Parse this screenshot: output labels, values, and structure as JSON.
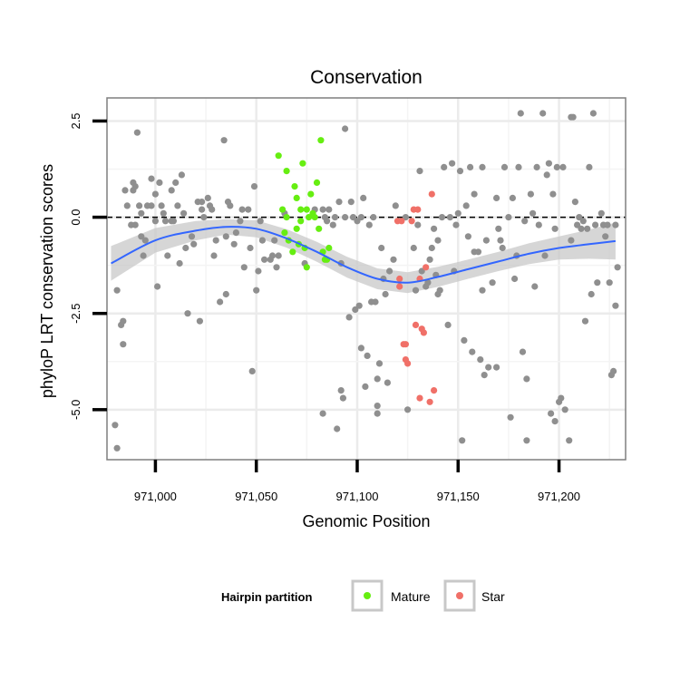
{
  "chart_data": {
    "type": "scatter",
    "title": "Conservation",
    "xlabel": "Genomic Position",
    "ylabel": "phyloP LRT conservation scores",
    "xlim": [
      970976,
      971233
    ],
    "ylim": [
      -6.3,
      3.1
    ],
    "xticks": [
      971000,
      971050,
      971100,
      971150,
      971200
    ],
    "xtick_labels": [
      "971,000",
      "971,050",
      "971,100",
      "971,150",
      "971,200"
    ],
    "yticks": [
      -5.0,
      -2.5,
      0.0,
      2.5
    ],
    "ytick_labels": [
      "-5.0",
      "-2.5",
      "0.0",
      "2.5"
    ],
    "grid": true,
    "reference_line": {
      "y": 0,
      "style": "dashed",
      "color": "#000000"
    },
    "legend": {
      "title": "Hairpin partition",
      "position": "bottom",
      "entries": [
        {
          "label": "Mature",
          "color": "#66ee11"
        },
        {
          "label": "Star",
          "color": "#f07068"
        }
      ]
    },
    "colors": {
      "other": "#8f8f8f",
      "mature": "#66ee11",
      "star": "#f07068",
      "smooth": "#3366ff",
      "band": "#c8c8c8"
    },
    "series": [
      {
        "role": "other",
        "points": [
          [
            970980,
            -5.4
          ],
          [
            970981,
            -6.0
          ],
          [
            970981,
            -1.9
          ],
          [
            970983,
            -2.8
          ],
          [
            970984,
            -3.3
          ],
          [
            970984,
            -2.7
          ],
          [
            970985,
            0.7
          ],
          [
            970986,
            0.3
          ],
          [
            970988,
            -0.2
          ],
          [
            970989,
            0.7
          ],
          [
            970989,
            0.9
          ],
          [
            970990,
            0.8
          ],
          [
            970990,
            -0.2
          ],
          [
            970991,
            2.2
          ],
          [
            970992,
            0.3
          ],
          [
            970993,
            0.1
          ],
          [
            970993,
            -0.5
          ],
          [
            970994,
            -1.0
          ],
          [
            970995,
            -0.6
          ],
          [
            970996,
            0.3
          ],
          [
            970998,
            1.0
          ],
          [
            970998,
            0.3
          ],
          [
            971000,
            -0.1
          ],
          [
            971000,
            0.6
          ],
          [
            971001,
            -1.8
          ],
          [
            971002,
            0.9
          ],
          [
            971003,
            0.3
          ],
          [
            971004,
            0.1
          ],
          [
            971005,
            -0.1
          ],
          [
            971006,
            -1.0
          ],
          [
            971008,
            0.7
          ],
          [
            971008,
            -0.1
          ],
          [
            971009,
            -0.1
          ],
          [
            971010,
            0.9
          ],
          [
            971011,
            0.3
          ],
          [
            971012,
            -1.2
          ],
          [
            971013,
            1.1
          ],
          [
            971014,
            0.1
          ],
          [
            971015,
            -0.8
          ],
          [
            971016,
            -2.5
          ],
          [
            971018,
            -0.5
          ],
          [
            971019,
            -0.7
          ],
          [
            971021,
            0.4
          ],
          [
            971022,
            -2.7
          ],
          [
            971023,
            0.4
          ],
          [
            971023,
            0.2
          ],
          [
            971024,
            0.0
          ],
          [
            971026,
            0.5
          ],
          [
            971027,
            0.3
          ],
          [
            971028,
            0.2
          ],
          [
            971029,
            -1.0
          ],
          [
            971030,
            -0.6
          ],
          [
            971032,
            -2.2
          ],
          [
            971034,
            2.0
          ],
          [
            971035,
            -0.5
          ],
          [
            971035,
            -2.0
          ],
          [
            971036,
            0.4
          ],
          [
            971037,
            0.3
          ],
          [
            971039,
            -0.7
          ],
          [
            971040,
            -0.4
          ],
          [
            971042,
            -0.1
          ],
          [
            971043,
            0.2
          ],
          [
            971044,
            -1.3
          ],
          [
            971046,
            0.2
          ],
          [
            971047,
            -0.8
          ],
          [
            971048,
            -4.0
          ],
          [
            971049,
            0.8
          ],
          [
            971050,
            -1.9
          ],
          [
            971051,
            -1.4
          ],
          [
            971052,
            -0.1
          ],
          [
            971053,
            -0.6
          ],
          [
            971054,
            -1.1
          ],
          [
            971057,
            -1.1
          ],
          [
            971058,
            -1.0
          ],
          [
            971059,
            -0.6
          ],
          [
            971060,
            -1.3
          ],
          [
            971061,
            -1.0
          ],
          [
            971064,
            0.1
          ],
          [
            971074,
            -1.2
          ],
          [
            971079,
            0.2
          ],
          [
            971083,
            0.2
          ],
          [
            971083,
            -5.1
          ],
          [
            971084,
            0.0
          ],
          [
            971085,
            -0.1
          ],
          [
            971086,
            0.2
          ],
          [
            971088,
            -0.2
          ],
          [
            971089,
            0.0
          ],
          [
            971090,
            -5.5
          ],
          [
            971091,
            0.4
          ],
          [
            971092,
            -1.2
          ],
          [
            971092,
            -4.5
          ],
          [
            971093,
            -4.7
          ],
          [
            971094,
            2.3
          ],
          [
            971094,
            0.0
          ],
          [
            971096,
            -2.6
          ],
          [
            971097,
            0.4
          ],
          [
            971098,
            0.0
          ],
          [
            971099,
            -2.4
          ],
          [
            971100,
            -0.1
          ],
          [
            971101,
            -2.3
          ],
          [
            971102,
            -3.4
          ],
          [
            971102,
            0.0
          ],
          [
            971103,
            0.5
          ],
          [
            971104,
            -4.4
          ],
          [
            971105,
            -3.6
          ],
          [
            971106,
            -0.2
          ],
          [
            971107,
            -2.2
          ],
          [
            971108,
            0.0
          ],
          [
            971109,
            -2.2
          ],
          [
            971110,
            -4.2
          ],
          [
            971110,
            -4.9
          ],
          [
            971110,
            -5.1
          ],
          [
            971111,
            -3.8
          ],
          [
            971112,
            -0.8
          ],
          [
            971113,
            -1.6
          ],
          [
            971114,
            -2.0
          ],
          [
            971115,
            -4.3
          ],
          [
            971116,
            -1.4
          ],
          [
            971118,
            -1.1
          ],
          [
            971119,
            0.3
          ],
          [
            971124,
            0.0
          ],
          [
            971125,
            -5.0
          ],
          [
            971128,
            -0.8
          ],
          [
            971129,
            -1.9
          ],
          [
            971130,
            -0.2
          ],
          [
            971131,
            1.2
          ],
          [
            971132,
            -1.4
          ],
          [
            971134,
            -1.8
          ],
          [
            971135,
            -1.7
          ],
          [
            971136,
            -1.1
          ],
          [
            971137,
            -0.8
          ],
          [
            971138,
            -0.3
          ],
          [
            971139,
            -1.5
          ],
          [
            971140,
            -2.0
          ],
          [
            971140,
            -0.6
          ],
          [
            971141,
            -1.9
          ],
          [
            971142,
            0.0
          ],
          [
            971143,
            1.3
          ],
          [
            971145,
            -2.8
          ],
          [
            971146,
            0.0
          ],
          [
            971147,
            1.4
          ],
          [
            971148,
            -1.4
          ],
          [
            971149,
            -0.2
          ],
          [
            971150,
            0.1
          ],
          [
            971151,
            1.2
          ],
          [
            971152,
            -5.8
          ],
          [
            971153,
            -3.2
          ],
          [
            971154,
            0.3
          ],
          [
            971155,
            -0.5
          ],
          [
            971156,
            1.3
          ],
          [
            971157,
            -3.5
          ],
          [
            971158,
            0.6
          ],
          [
            971158,
            -0.9
          ],
          [
            971160,
            -0.9
          ],
          [
            971161,
            -3.7
          ],
          [
            971162,
            1.3
          ],
          [
            971162,
            -1.9
          ],
          [
            971163,
            -4.1
          ],
          [
            971164,
            -0.6
          ],
          [
            971165,
            -3.9
          ],
          [
            971167,
            -1.7
          ],
          [
            971169,
            0.5
          ],
          [
            971169,
            -3.9
          ],
          [
            971170,
            -0.3
          ],
          [
            971171,
            -0.6
          ],
          [
            971172,
            -0.8
          ],
          [
            971173,
            1.3
          ],
          [
            971175,
            0.0
          ],
          [
            971176,
            -5.2
          ],
          [
            971177,
            0.5
          ],
          [
            971178,
            -1.6
          ],
          [
            971179,
            -1.0
          ],
          [
            971180,
            1.3
          ],
          [
            971181,
            2.7
          ],
          [
            971182,
            -3.5
          ],
          [
            971183,
            -0.1
          ],
          [
            971184,
            -4.2
          ],
          [
            971184,
            -5.8
          ],
          [
            971186,
            0.6
          ],
          [
            971187,
            0.1
          ],
          [
            971188,
            -1.8
          ],
          [
            971189,
            1.3
          ],
          [
            971190,
            -0.2
          ],
          [
            971192,
            2.7
          ],
          [
            971193,
            -1.0
          ],
          [
            971194,
            1.1
          ],
          [
            971195,
            1.4
          ],
          [
            971196,
            -5.1
          ],
          [
            971197,
            0.6
          ],
          [
            971198,
            -5.3
          ],
          [
            971198,
            -0.3
          ],
          [
            971199,
            1.3
          ],
          [
            971200,
            -4.8
          ],
          [
            971201,
            -4.7
          ],
          [
            971202,
            1.3
          ],
          [
            971203,
            -5.0
          ],
          [
            971205,
            -5.8
          ],
          [
            971206,
            -0.6
          ],
          [
            971206,
            2.6
          ],
          [
            971207,
            2.6
          ],
          [
            971208,
            0.4
          ],
          [
            971209,
            -0.2
          ],
          [
            971210,
            0.0
          ],
          [
            971211,
            -0.3
          ],
          [
            971212,
            -0.1
          ],
          [
            971213,
            -2.7
          ],
          [
            971214,
            -0.3
          ],
          [
            971215,
            1.3
          ],
          [
            971216,
            -2.0
          ],
          [
            971217,
            2.7
          ],
          [
            971218,
            -0.2
          ],
          [
            971219,
            -1.7
          ],
          [
            971221,
            0.1
          ],
          [
            971222,
            -0.2
          ],
          [
            971223,
            -0.5
          ],
          [
            971224,
            -0.2
          ],
          [
            971225,
            -1.7
          ],
          [
            971226,
            -4.1
          ],
          [
            971227,
            -4.0
          ],
          [
            971228,
            -2.3
          ],
          [
            971228,
            -0.2
          ],
          [
            971229,
            -1.3
          ]
        ]
      },
      {
        "name": "Mature",
        "points": [
          [
            971061,
            1.6
          ],
          [
            971063,
            0.2
          ],
          [
            971064,
            -0.4
          ],
          [
            971065,
            1.2
          ],
          [
            971065,
            0.0
          ],
          [
            971066,
            -0.6
          ],
          [
            971068,
            -0.9
          ],
          [
            971069,
            0.8
          ],
          [
            971070,
            0.5
          ],
          [
            971070,
            -0.3
          ],
          [
            971071,
            -0.7
          ],
          [
            971072,
            0.2
          ],
          [
            971072,
            -0.1
          ],
          [
            971073,
            1.4
          ],
          [
            971074,
            -0.8
          ],
          [
            971075,
            0.2
          ],
          [
            971075,
            -1.3
          ],
          [
            971076,
            0.0
          ],
          [
            971077,
            0.6
          ],
          [
            971078,
            0.1
          ],
          [
            971079,
            0.0
          ],
          [
            971080,
            0.9
          ],
          [
            971081,
            -0.3
          ],
          [
            971082,
            2.0
          ],
          [
            971083,
            -0.9
          ],
          [
            971084,
            -1.1
          ],
          [
            971085,
            -1.1
          ],
          [
            971086,
            -0.8
          ]
        ]
      },
      {
        "name": "Star",
        "points": [
          [
            971120,
            -0.1
          ],
          [
            971121,
            -1.6
          ],
          [
            971121,
            -1.8
          ],
          [
            971122,
            -0.1
          ],
          [
            971123,
            -3.3
          ],
          [
            971124,
            -3.7
          ],
          [
            971124,
            -3.3
          ],
          [
            971125,
            -3.8
          ],
          [
            971127,
            -0.1
          ],
          [
            971128,
            0.2
          ],
          [
            971129,
            -2.8
          ],
          [
            971130,
            0.2
          ],
          [
            971131,
            -1.6
          ],
          [
            971131,
            -4.7
          ],
          [
            971132,
            -2.9
          ],
          [
            971133,
            -3.0
          ],
          [
            971134,
            -1.3
          ],
          [
            971136,
            -4.8
          ],
          [
            971137,
            0.6
          ],
          [
            971138,
            -4.5
          ]
        ]
      }
    ],
    "smooth": {
      "x": [
        970978,
        971000,
        971020,
        971035,
        971050,
        971065,
        971080,
        971095,
        971110,
        971125,
        971140,
        971155,
        971170,
        971185,
        971200,
        971215,
        971228
      ],
      "y": [
        -1.2,
        -0.6,
        -0.35,
        -0.25,
        -0.3,
        -0.55,
        -0.9,
        -1.3,
        -1.6,
        -1.7,
        -1.55,
        -1.35,
        -1.15,
        -0.95,
        -0.8,
        -0.7,
        -0.62
      ],
      "se": [
        0.45,
        0.32,
        0.25,
        0.2,
        0.22,
        0.24,
        0.26,
        0.27,
        0.27,
        0.27,
        0.26,
        0.25,
        0.25,
        0.27,
        0.3,
        0.38,
        0.48
      ]
    }
  }
}
